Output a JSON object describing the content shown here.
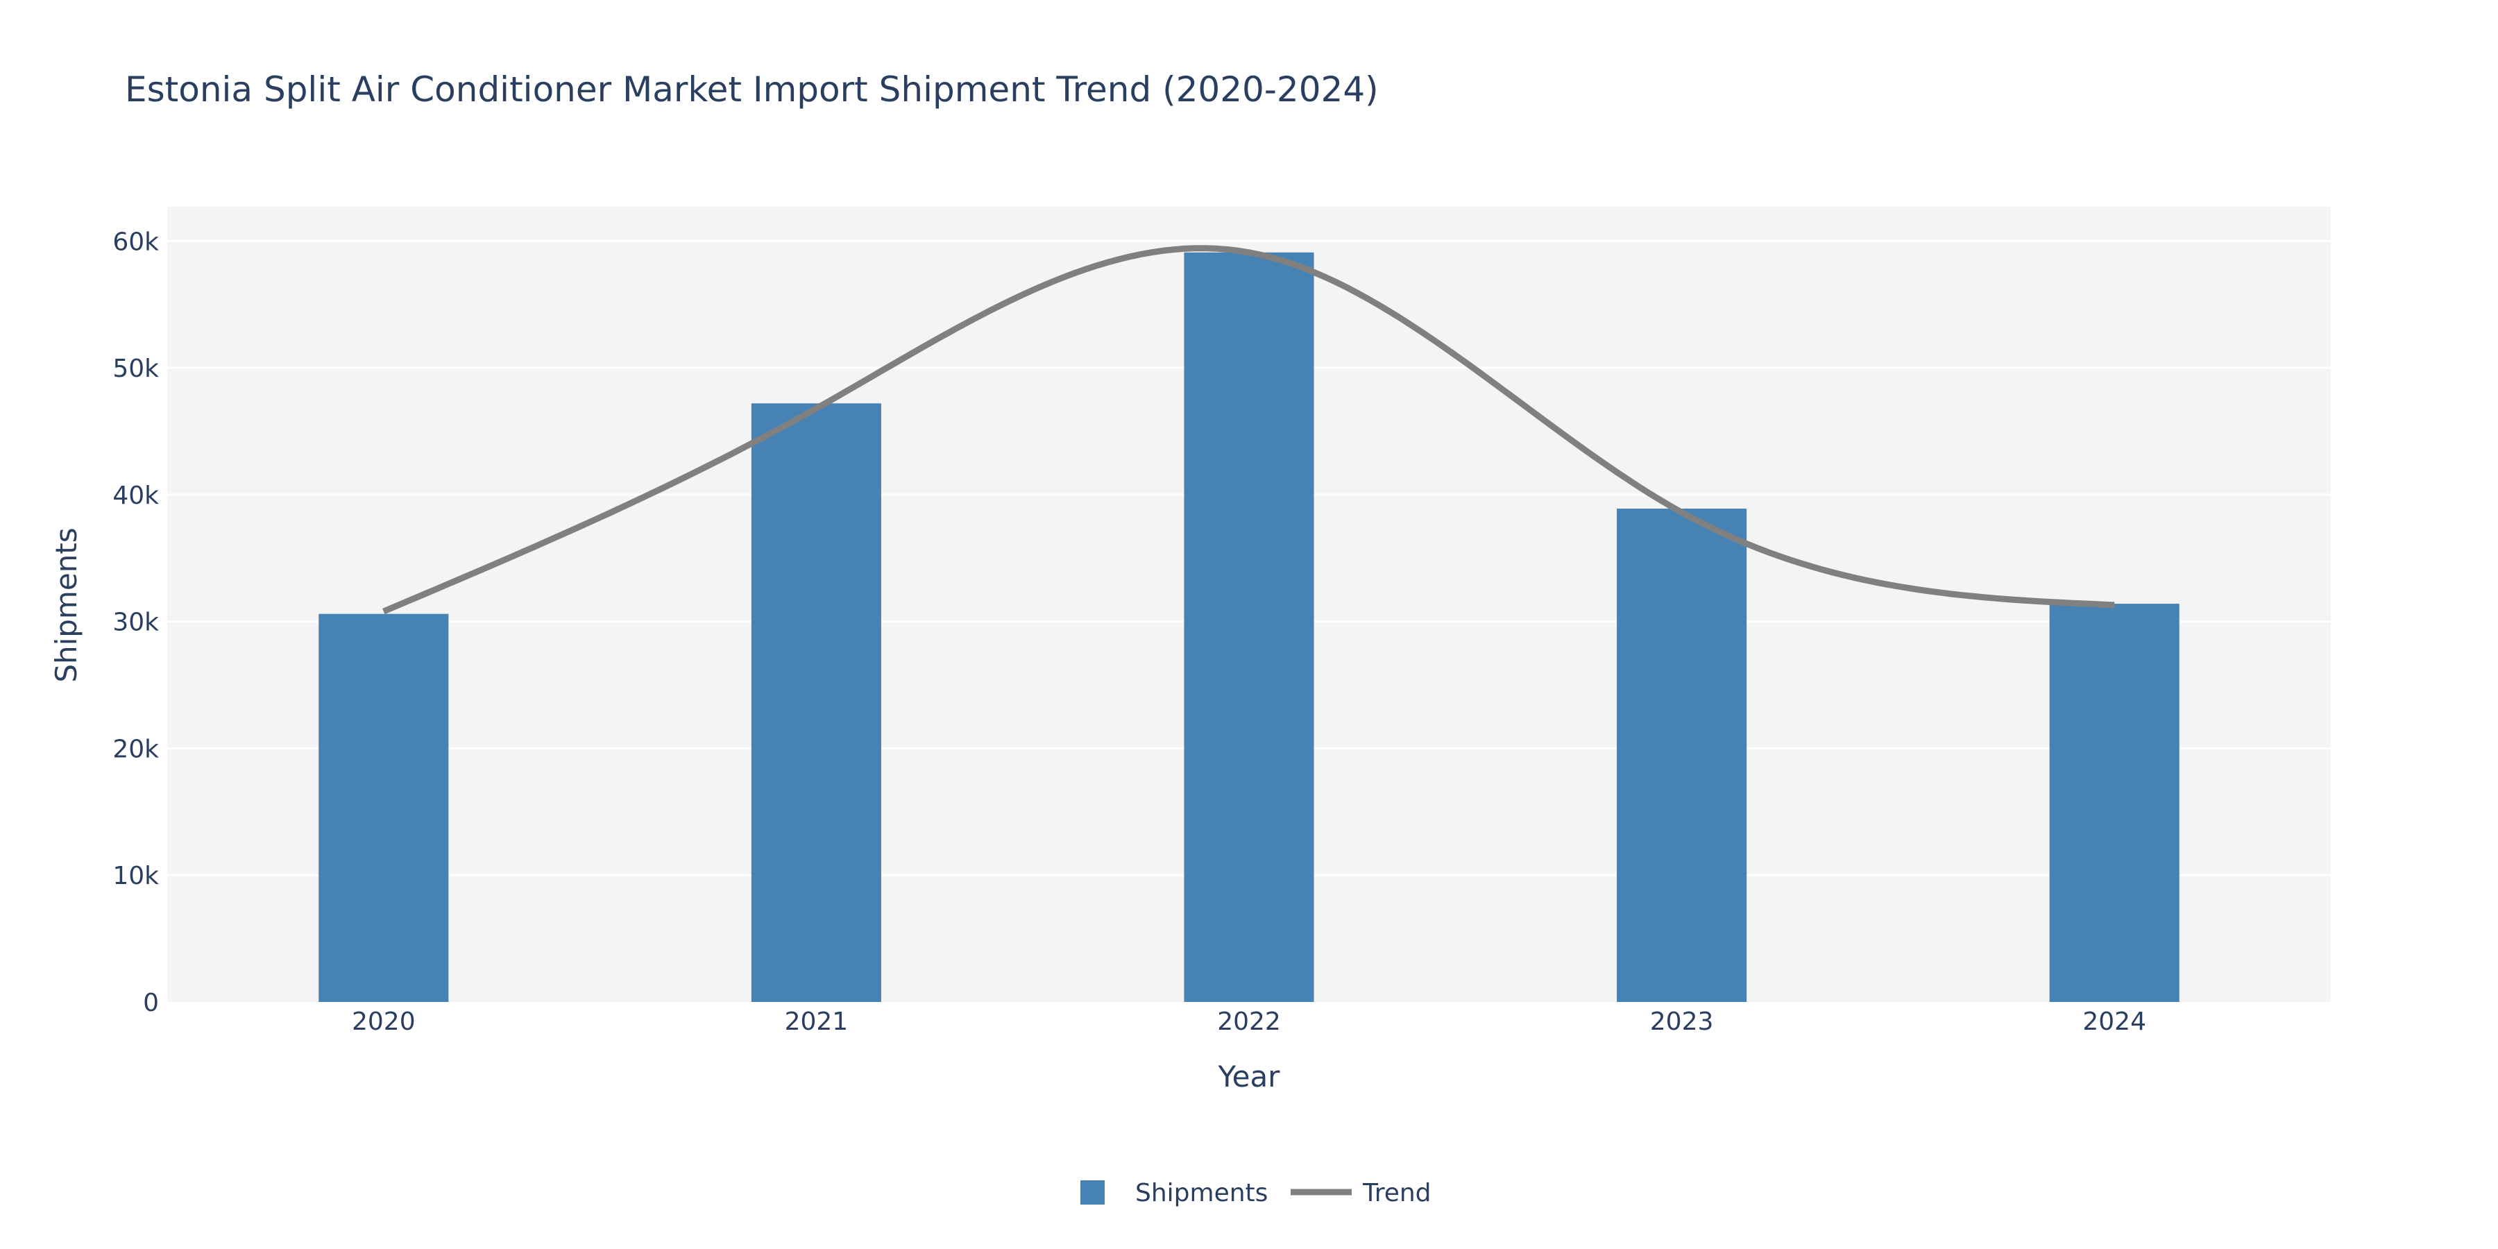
{
  "chart_data": {
    "type": "bar",
    "title": "Estonia Split Air Conditioner Market Import Shipment Trend (2020-2024)",
    "xlabel": "Year",
    "ylabel": "Shipments",
    "categories": [
      "2020",
      "2021",
      "2022",
      "2023",
      "2024"
    ],
    "series": [
      {
        "name": "Shipments",
        "type": "bar",
        "color": "#4682b4",
        "values": [
          30600,
          47200,
          59100,
          38900,
          31400
        ]
      },
      {
        "name": "Trend",
        "type": "line",
        "smooth": true,
        "color": "#808080",
        "values": [
          30800,
          46800,
          59100,
          38600,
          31300
        ]
      }
    ],
    "ylim": [
      0,
      62700
    ],
    "yticks": [
      0,
      10000,
      20000,
      30000,
      40000,
      50000,
      60000
    ],
    "ytick_labels": [
      "0",
      "10k",
      "20k",
      "30k",
      "40k",
      "50k",
      "60k"
    ],
    "grid": true,
    "plot_bg": "#f4f4f4",
    "legend": {
      "placement": "bottom-center",
      "orientation": "horizontal",
      "items": [
        "Shipments",
        "Trend"
      ]
    }
  }
}
